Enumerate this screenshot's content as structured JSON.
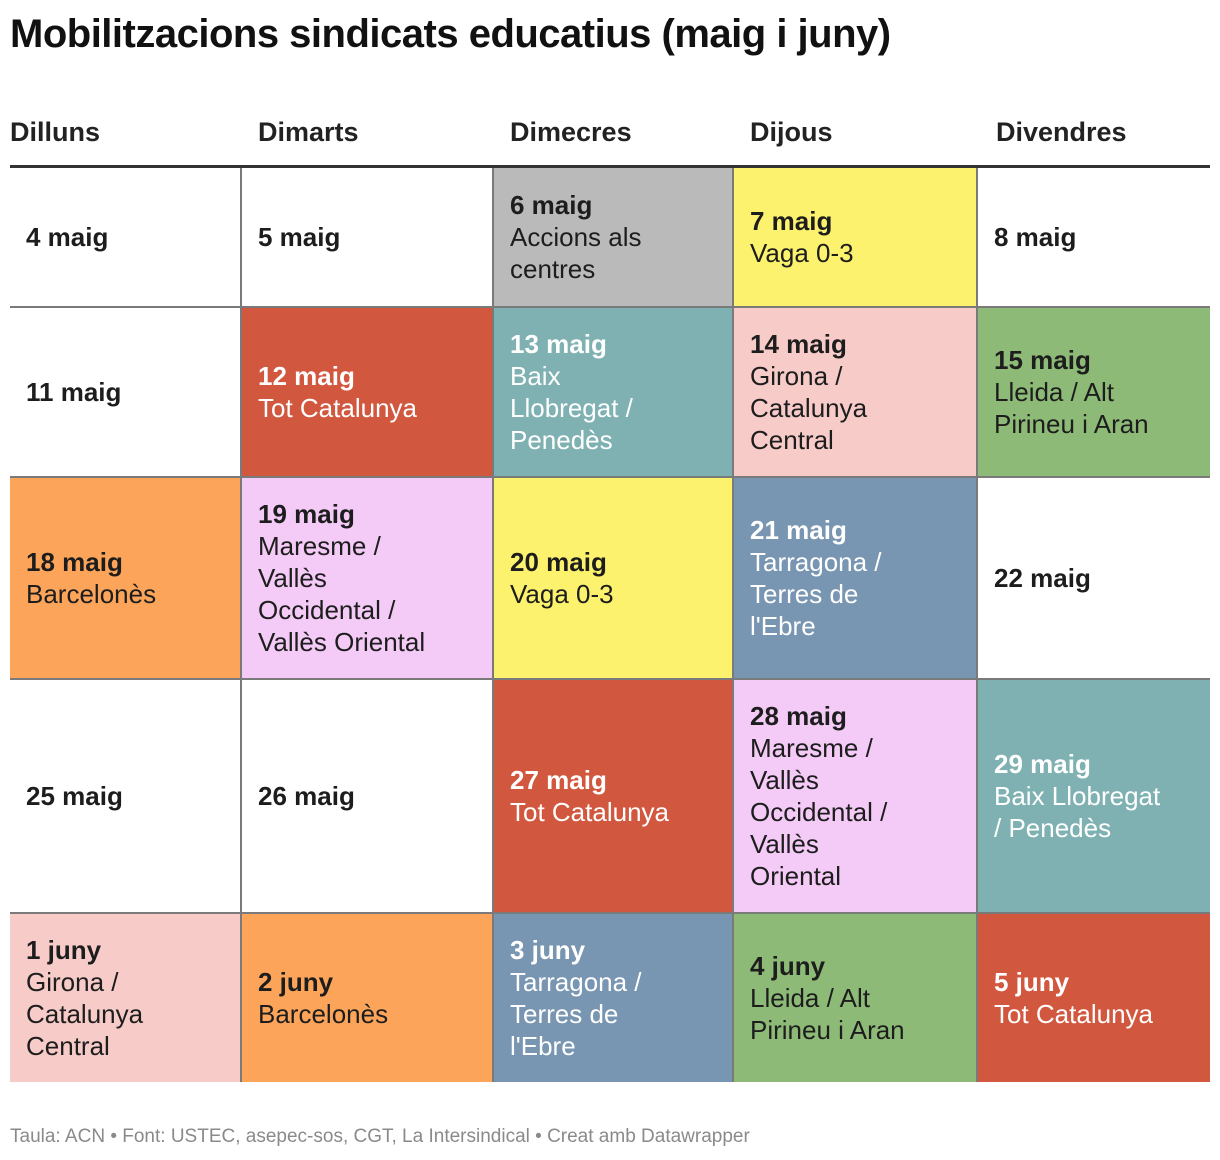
{
  "title": "Mobilitzacions sindicats educatius (maig i juny)",
  "footer": "Taula: ACN • Font: USTEC, asepec-sos, CGT, La Intersindical • Creat amb Datawrapper",
  "colors": {
    "white": "#ffffff",
    "gray": "#bababa",
    "yellow": "#fdf26e",
    "red": "#d1583f",
    "teal": "#7fb1b2",
    "pink": "#f6cbc8",
    "green": "#8dbb77",
    "orange": "#fca55a",
    "violet": "#f4caf6",
    "steel": "#7895b1"
  },
  "chart_data": {
    "type": "table",
    "columns": [
      "Dilluns",
      "Dimarts",
      "Dimecres",
      "Dijous",
      "Divendres"
    ],
    "rows": [
      [
        {
          "date": "4 maig",
          "text": "",
          "color": "white"
        },
        {
          "date": "5 maig",
          "text": "",
          "color": "white"
        },
        {
          "date": "6 maig",
          "text": "Accions als\ncentres",
          "color": "gray"
        },
        {
          "date": "7 maig",
          "text": "Vaga 0-3",
          "color": "yellow"
        },
        {
          "date": "8 maig",
          "text": "",
          "color": "white"
        }
      ],
      [
        {
          "date": "11 maig",
          "text": "",
          "color": "white"
        },
        {
          "date": "12 maig",
          "text": "Tot Catalunya",
          "color": "red"
        },
        {
          "date": "13 maig",
          "text": "Baix\nLlobregat /\nPenedès",
          "color": "teal"
        },
        {
          "date": "14 maig",
          "text": "Girona /\nCatalunya\nCentral",
          "color": "pink"
        },
        {
          "date": "15 maig",
          "text": "Lleida / Alt\nPirineu i Aran",
          "color": "green"
        }
      ],
      [
        {
          "date": "18 maig",
          "text": "Barcelonès",
          "color": "orange"
        },
        {
          "date": "19 maig",
          "text": "Maresme /\nVallès\nOccidental /\nVallès Oriental",
          "color": "violet"
        },
        {
          "date": "20 maig",
          "text": "Vaga 0-3",
          "color": "yellow"
        },
        {
          "date": "21 maig",
          "text": "Tarragona /\nTerres de\nl'Ebre",
          "color": "steel"
        },
        {
          "date": "22 maig",
          "text": "",
          "color": "white"
        }
      ],
      [
        {
          "date": "25 maig",
          "text": "",
          "color": "white"
        },
        {
          "date": "26 maig",
          "text": "",
          "color": "white"
        },
        {
          "date": "27 maig",
          "text": "Tot Catalunya",
          "color": "red"
        },
        {
          "date": "28 maig",
          "text": "Maresme /\nVallès\nOccidental /\nVallès\nOriental",
          "color": "violet"
        },
        {
          "date": "29 maig",
          "text": "Baix Llobregat\n/ Penedès",
          "color": "teal"
        }
      ],
      [
        {
          "date": "1 juny",
          "text": "Girona /\nCatalunya\nCentral",
          "color": "pink"
        },
        {
          "date": "2 juny",
          "text": "Barcelonès",
          "color": "orange"
        },
        {
          "date": "3 juny",
          "text": "Tarragona /\nTerres de\nl'Ebre",
          "color": "steel"
        },
        {
          "date": "4 juny",
          "text": "Lleida / Alt\nPirineu i Aran",
          "color": "green"
        },
        {
          "date": "5 juny",
          "text": "Tot Catalunya",
          "color": "red"
        }
      ]
    ]
  }
}
